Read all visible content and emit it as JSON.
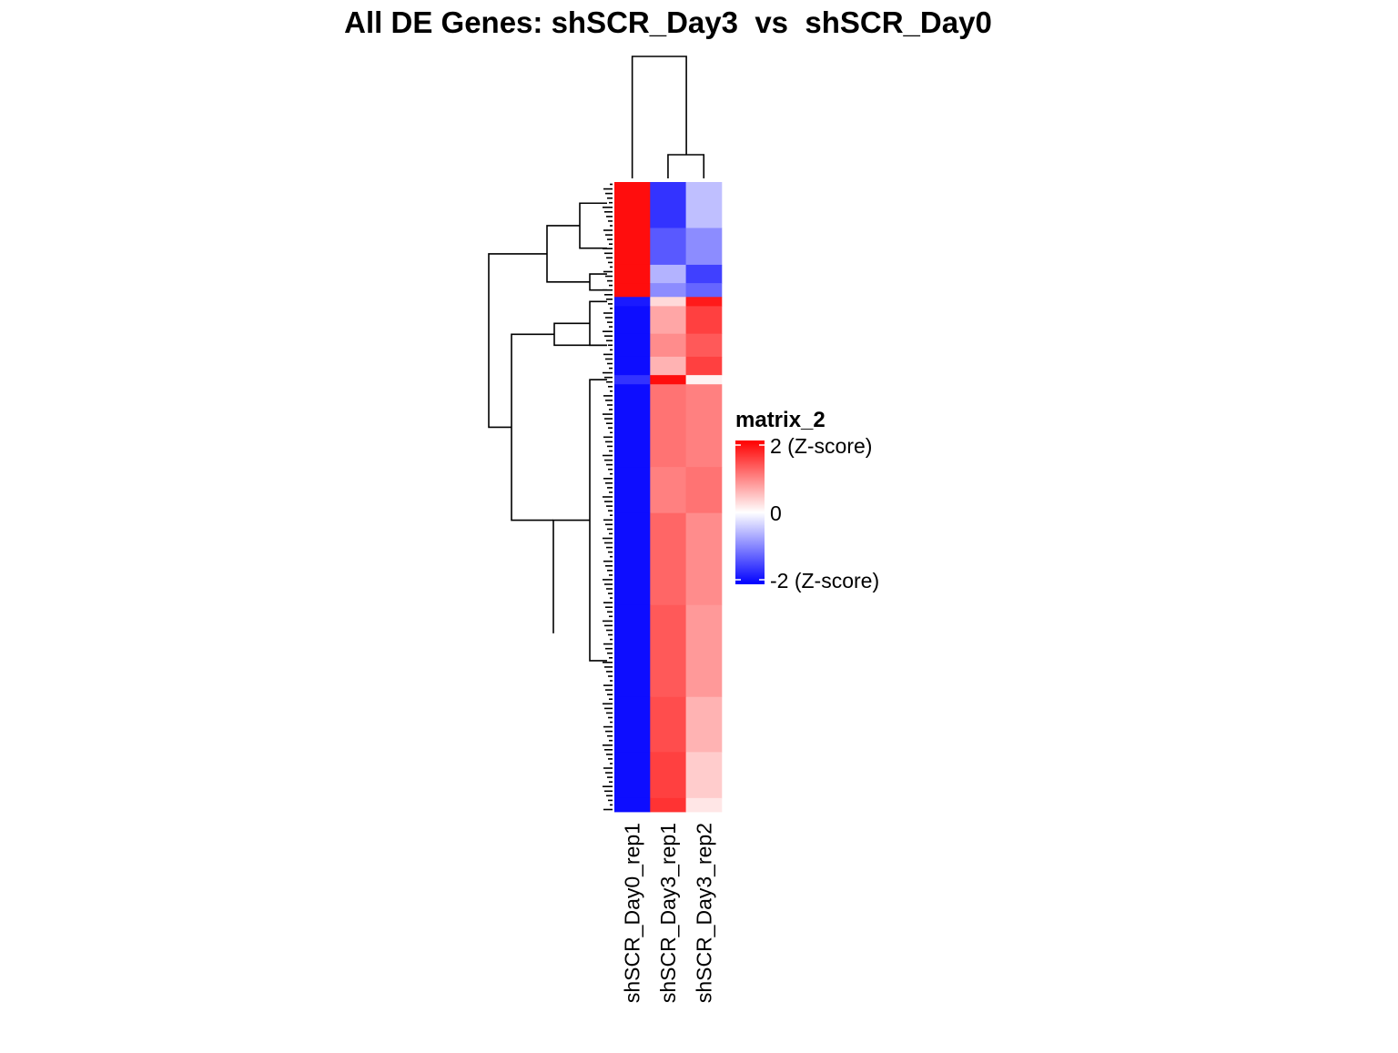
{
  "chart_data": {
    "type": "heatmap",
    "title": "All DE Genes: shSCR_Day3  vs  shSCR_Day0",
    "columns": [
      "shSCR_Day0_rep1",
      "shSCR_Day3_rep1",
      "shSCR_Day3_rep2"
    ],
    "row_labels_shown": false,
    "color_scale": {
      "name": "matrix_2",
      "min": -2,
      "mid": 0,
      "max": 2,
      "low_color": "#0000ff",
      "mid_color": "#ffffff",
      "high_color": "#ff0000",
      "tick_labels": [
        "2 (Z-score)",
        "0",
        "-2 (Z-score)"
      ]
    },
    "row_blocks": [
      {
        "rows": 10,
        "values": [
          1.9,
          -1.6,
          -0.5
        ]
      },
      {
        "rows": 8,
        "values": [
          1.9,
          -1.3,
          -0.9
        ]
      },
      {
        "rows": 4,
        "values": [
          1.9,
          -0.6,
          -1.5
        ]
      },
      {
        "rows": 3,
        "values": [
          1.9,
          -0.9,
          -1.2
        ]
      },
      {
        "rows": 2,
        "values": [
          -1.8,
          0.3,
          1.8
        ]
      },
      {
        "rows": 6,
        "values": [
          -1.9,
          0.7,
          1.5
        ]
      },
      {
        "rows": 5,
        "values": [
          -1.9,
          0.9,
          1.3
        ]
      },
      {
        "rows": 4,
        "values": [
          -1.9,
          0.6,
          1.5
        ]
      },
      {
        "rows": 2,
        "values": [
          -1.6,
          1.9,
          0.1
        ]
      },
      {
        "rows": 18,
        "values": [
          -1.9,
          1.1,
          1.0
        ]
      },
      {
        "rows": 10,
        "values": [
          -1.9,
          1.0,
          1.1
        ]
      },
      {
        "rows": 20,
        "values": [
          -1.9,
          1.2,
          0.9
        ]
      },
      {
        "rows": 20,
        "values": [
          -1.9,
          1.3,
          0.8
        ]
      },
      {
        "rows": 12,
        "values": [
          -1.9,
          1.4,
          0.6
        ]
      },
      {
        "rows": 10,
        "values": [
          -1.9,
          1.5,
          0.4
        ]
      },
      {
        "rows": 3,
        "values": [
          -1.9,
          1.6,
          0.2
        ]
      }
    ],
    "dendrogram_columns": "Day3_rep1 and Day3_rep2 cluster first, then join Day0_rep1",
    "dendrogram_rows": "two top-level clusters: up in Day0 vs up in Day3"
  }
}
